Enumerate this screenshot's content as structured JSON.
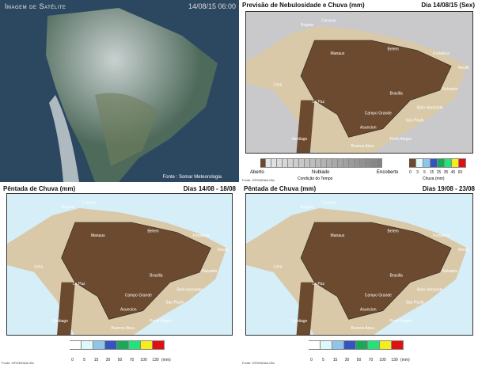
{
  "satellite": {
    "title": "Imagem de Satélite",
    "timestamp": "14/08/15 06:00",
    "source": "Fonte : Somar Meteorologia"
  },
  "cities": [
    "Bogota",
    "Caracas",
    "Manaus",
    "Belem",
    "Fortaleza",
    "Recife",
    "Salvador",
    "Lima",
    "La Paz",
    "Brasilia",
    "Belo Horizonte",
    "Campo Grande",
    "Sao Paulo",
    "Asuncion",
    "Porto Alegre",
    "Buenos Aires",
    "Santiago"
  ],
  "forecast": {
    "title": "Previsão de Nebulosidade e Chuva (mm)",
    "date": "Dia 14/08/15 (Sex)",
    "source": "Fonte: GFS/NOAA-00z",
    "cloud_legend": {
      "labels": [
        "Aberto",
        "Nublado",
        "Encoberto"
      ],
      "caption": "Condição do Tempo"
    },
    "rain_legend": {
      "ticks": [
        "0",
        "3",
        "5",
        "15",
        "25",
        "35",
        "45",
        "60"
      ],
      "caption": "Chuva (mm)",
      "colors": [
        "#6b4a2f",
        "#dff6fb",
        "#8ec6ea",
        "#3455c0",
        "#1aa85a",
        "#22e27a",
        "#f6ee1a",
        "#e01010"
      ]
    }
  },
  "pentada1": {
    "title": "Pêntada de Chuva (mm)",
    "date": "Dias 14/08 - 18/08",
    "source": "Fonte: GFS/NOAA-00z"
  },
  "pentada2": {
    "title": "Pêntada de Chuva (mm)",
    "date": "Dias 19/08 - 23/08",
    "source": "Fonte: GFS/NOAA-00z"
  },
  "pentada_legend": {
    "ticks": [
      "0",
      "5",
      "15",
      "30",
      "50",
      "70",
      "100",
      "130"
    ],
    "unit": "(mm)",
    "colors": [
      "#ffffff",
      "#dff6fb",
      "#8ec6ea",
      "#3455c0",
      "#1aa85a",
      "#22e27a",
      "#f6ee1a",
      "#e01010"
    ]
  }
}
